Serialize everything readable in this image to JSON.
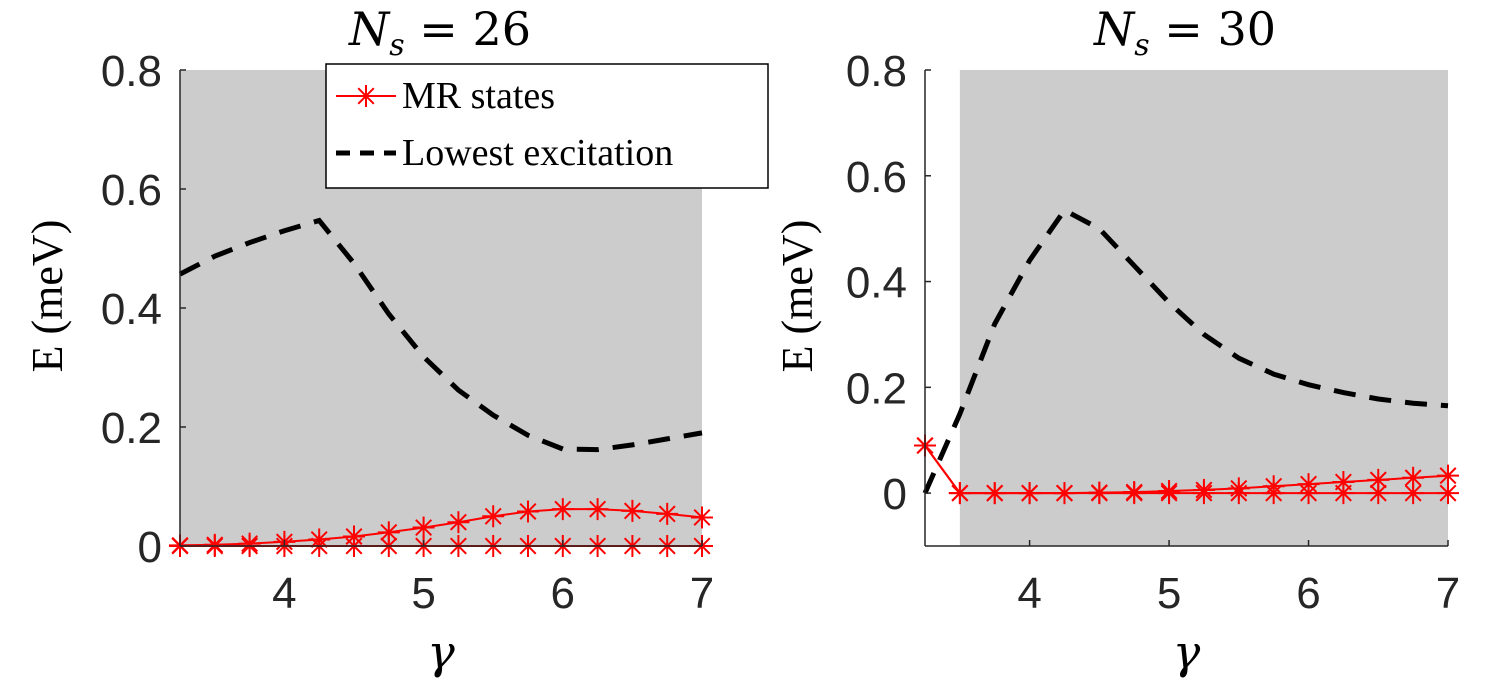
{
  "chart_data": [
    {
      "type": "line",
      "title": "N_s = 26",
      "title_parts": {
        "sym": "N",
        "sub": "s",
        "rest": " = 26"
      },
      "xlabel": "γ",
      "ylabel": "E (meV)",
      "xlim": [
        3.25,
        7.0
      ],
      "ylim": [
        0.0,
        0.8
      ],
      "xticks": [
        "4",
        "5",
        "6",
        "7"
      ],
      "yticks": [
        "0",
        "0.2",
        "0.4",
        "0.6",
        "0.8"
      ],
      "shaded_region": [
        3.25,
        7.0
      ],
      "legend": {
        "position": "top-right",
        "entries": [
          "MR states",
          "Lowest excitation"
        ]
      },
      "series": [
        {
          "name": "MR states",
          "style": "red-star-line",
          "x": [
            3.25,
            3.5,
            3.75,
            4.0,
            4.25,
            4.5,
            4.75,
            5.0,
            5.25,
            5.5,
            5.75,
            6.0,
            6.25,
            6.5,
            6.75,
            7.0
          ],
          "values": [
            0.001,
            0.002,
            0.004,
            0.007,
            0.011,
            0.016,
            0.023,
            0.031,
            0.04,
            0.05,
            0.058,
            0.062,
            0.062,
            0.059,
            0.054,
            0.048
          ]
        },
        {
          "name": "MR states",
          "style": "red-star-line",
          "x": [
            3.25,
            3.5,
            3.75,
            4.0,
            4.25,
            4.5,
            4.75,
            5.0,
            5.25,
            5.5,
            5.75,
            6.0,
            6.25,
            6.5,
            6.75,
            7.0
          ],
          "values": [
            0,
            0,
            0,
            0,
            0,
            0,
            0,
            0,
            0,
            0,
            0,
            0,
            0,
            0,
            0,
            0
          ]
        },
        {
          "name": "Lowest excitation",
          "style": "black-dashed",
          "x": [
            3.25,
            3.5,
            3.75,
            4.0,
            4.25,
            4.5,
            4.75,
            5.0,
            5.25,
            5.5,
            5.75,
            6.0,
            6.25,
            6.5,
            6.75,
            7.0
          ],
          "values": [
            0.457,
            0.487,
            0.51,
            0.53,
            0.547,
            0.475,
            0.39,
            0.318,
            0.262,
            0.22,
            0.186,
            0.163,
            0.162,
            0.17,
            0.18,
            0.19
          ]
        }
      ]
    },
    {
      "type": "line",
      "title": "N_s = 30",
      "title_parts": {
        "sym": "N",
        "sub": "s",
        "rest": " = 30"
      },
      "xlabel": "γ",
      "ylabel": "E (meV)",
      "xlim": [
        3.25,
        7.0
      ],
      "ylim": [
        -0.1,
        0.8
      ],
      "xticks": [
        "4",
        "5",
        "6",
        "7"
      ],
      "yticks": [
        "0",
        "0.2",
        "0.4",
        "0.6",
        "0.8"
      ],
      "shaded_region": [
        3.5,
        7.0
      ],
      "series": [
        {
          "name": "MR states",
          "style": "red-star-line",
          "x": [
            3.25,
            3.5,
            3.75,
            4.0,
            4.25,
            4.5,
            4.75,
            5.0,
            5.25,
            5.5,
            5.75,
            6.0,
            6.25,
            6.5,
            6.75,
            7.0
          ],
          "values": [
            0.09,
            0.0,
            0.0,
            0.0,
            0.0,
            0.001,
            0.002,
            0.004,
            0.006,
            0.009,
            0.013,
            0.017,
            0.021,
            0.025,
            0.029,
            0.033
          ]
        },
        {
          "name": "MR states",
          "style": "red-star-line",
          "x": [
            3.25,
            3.5,
            3.75,
            4.0,
            4.25,
            4.5,
            4.75,
            5.0,
            5.25,
            5.5,
            5.75,
            6.0,
            6.25,
            6.5,
            6.75,
            7.0
          ],
          "values": [
            0.09,
            0,
            0,
            0,
            0,
            0,
            0,
            0,
            0,
            0,
            0,
            0,
            0,
            0,
            0,
            0
          ]
        },
        {
          "name": "Lowest excitation",
          "style": "black-dashed",
          "x": [
            3.25,
            3.5,
            3.75,
            4.0,
            4.25,
            4.5,
            4.75,
            5.0,
            5.25,
            5.5,
            5.75,
            6.0,
            6.25,
            6.5,
            6.75,
            7.0
          ],
          "values": [
            0.0,
            0.15,
            0.32,
            0.44,
            0.535,
            0.5,
            0.43,
            0.36,
            0.3,
            0.255,
            0.225,
            0.205,
            0.19,
            0.178,
            0.17,
            0.165
          ]
        }
      ]
    }
  ]
}
